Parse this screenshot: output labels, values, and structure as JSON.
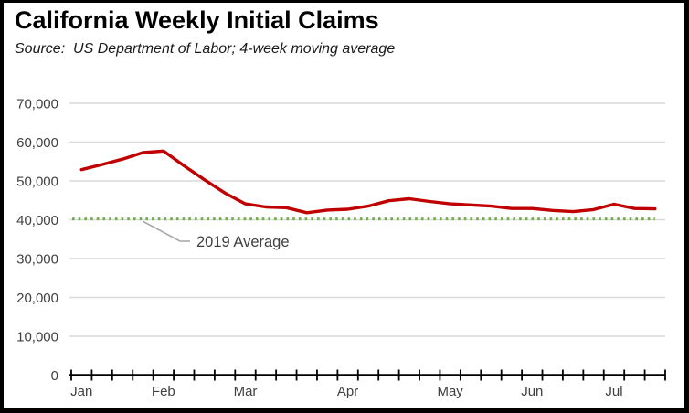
{
  "header": {
    "title": "California Weekly Initial Claims",
    "source_line": "Source:  US Department of Labor; 4-week moving average"
  },
  "chart_data": {
    "type": "line",
    "title": "California Weekly Initial Claims",
    "source": "Source: US Department of Labor; 4-week moving average",
    "grid": true,
    "legend": false,
    "y_axis": {
      "min": 0,
      "max": 70000,
      "step": 10000,
      "tick_labels": [
        "0",
        "10,000",
        "20,000",
        "30,000",
        "40,000",
        "50,000",
        "60,000",
        "70,000"
      ]
    },
    "x_axis": {
      "unit": "weeks",
      "tick_interval": "weekly",
      "num_weeks": 29,
      "month_labels": [
        {
          "label": "Jan",
          "week": 1
        },
        {
          "label": "Feb",
          "week": 5
        },
        {
          "label": "Mar",
          "week": 9
        },
        {
          "label": "Apr",
          "week": 14
        },
        {
          "label": "May",
          "week": 19
        },
        {
          "label": "Jun",
          "week": 23
        },
        {
          "label": "Jul",
          "week": 27
        }
      ]
    },
    "series": [
      {
        "name": "Weekly initial claims, 4-week moving average",
        "color": "#C00000",
        "values": [
          52900,
          54200,
          55600,
          57300,
          57700,
          53900,
          50300,
          46900,
          44100,
          43300,
          43100,
          41800,
          42500,
          42700,
          43500,
          44900,
          45400,
          44700,
          44100,
          43800,
          43500,
          42900,
          42900,
          42400,
          42100,
          42600,
          44000,
          42900,
          42800
        ]
      }
    ],
    "reference_line": {
      "label": "2019 Average",
      "value": 40200,
      "color": "#70AD47",
      "style": "dotted"
    },
    "colors": {
      "line": "#C00000",
      "average": "#70AD47",
      "grid": "#D9D9D9",
      "axis": "#000000",
      "leader": "#A6A6A6",
      "axis_text": "#404040"
    }
  }
}
